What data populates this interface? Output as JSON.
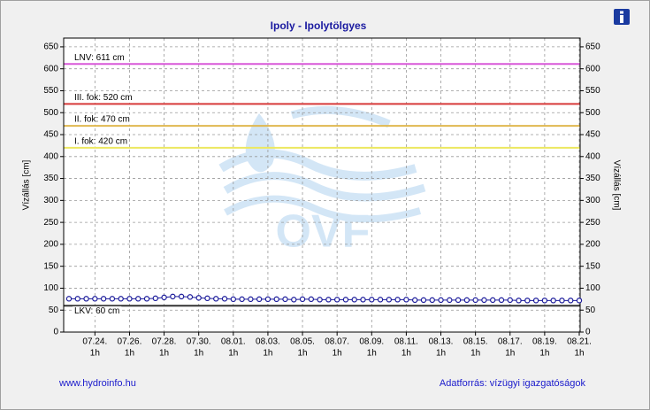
{
  "chart_data": {
    "type": "line",
    "title": "Ipoly - Ipolytölgyes",
    "y_label": "Vízállás [cm]",
    "categories": [
      null,
      null,
      null,
      "07.24.",
      null,
      null,
      null,
      "07.26.",
      null,
      null,
      null,
      "07.28.",
      null,
      null,
      null,
      "07.30.",
      null,
      null,
      null,
      "08.01.",
      null,
      null,
      null,
      "08.03.",
      null,
      null,
      null,
      "08.05.",
      null,
      null,
      null,
      "08.07.",
      null,
      null,
      null,
      "08.09.",
      null,
      null,
      null,
      "08.11.",
      null,
      null,
      null,
      "08.13.",
      null,
      null,
      null,
      "08.15.",
      null,
      null,
      null,
      "08.17.",
      null,
      null,
      null,
      "08.19.",
      null,
      null,
      null,
      "08.21."
    ],
    "tick_time": "1h",
    "series": [
      {
        "name": "Vízállás",
        "color": "#1a1a9a",
        "values": [
          76,
          76,
          76,
          76,
          76,
          76,
          76,
          76,
          76,
          76,
          77,
          79,
          81,
          81,
          80,
          78,
          77,
          76,
          76,
          75,
          75,
          75,
          75,
          75,
          75,
          75,
          74,
          75,
          75,
          74,
          74,
          74,
          74,
          74,
          74,
          74,
          74,
          74,
          74,
          74,
          73,
          73,
          73,
          73,
          73,
          73,
          73,
          73,
          73,
          73,
          73,
          73,
          72,
          72,
          72,
          72,
          72,
          72,
          72,
          72
        ]
      }
    ],
    "thresholds": [
      {
        "label": "LNV: 611 cm",
        "value": 611,
        "color": "#d858d8"
      },
      {
        "label": "III. fok: 520 cm",
        "value": 520,
        "color": "#d83a3a"
      },
      {
        "label": "II. fok: 470 cm",
        "value": 470,
        "color": "#e0b850"
      },
      {
        "label": "I. fok: 420 cm",
        "value": 420,
        "color": "#ece860"
      },
      {
        "label": "LKV: 60 cm",
        "value": 60,
        "color": "#333333"
      }
    ],
    "ylim": [
      0,
      670
    ],
    "yticks": [
      0,
      50,
      100,
      150,
      200,
      250,
      300,
      350,
      400,
      450,
      500,
      550,
      600,
      650
    ],
    "grid": true,
    "watermark": "OVF",
    "footer_left": "www.hydroinfo.hu",
    "footer_right": "Adatforrás: vízügyi igazgatóságok"
  }
}
